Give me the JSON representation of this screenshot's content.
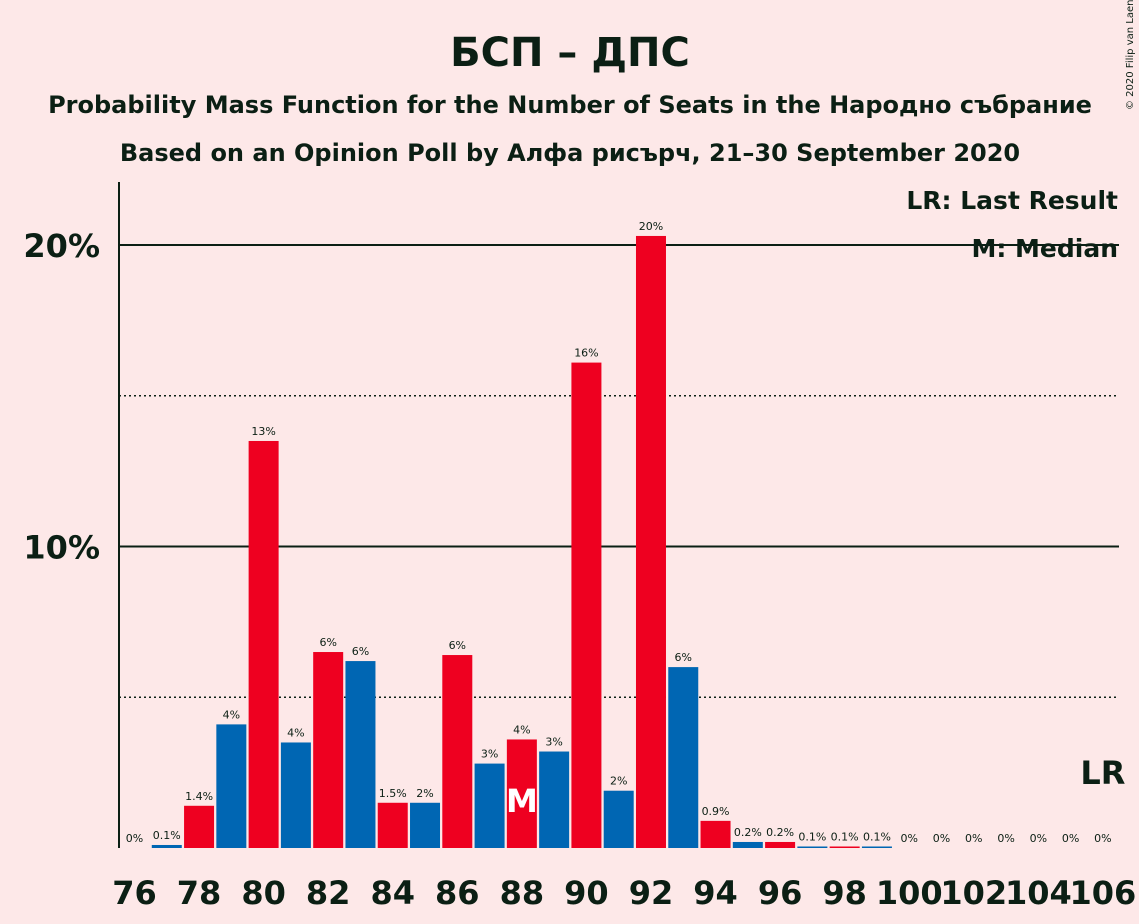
{
  "title": "БСП – ДПС",
  "subtitle1": "Probability Mass Function for the Number of Seats in the Народно събрание",
  "subtitle2": "Based on an Opinion Poll by Алфа рисърч, 21–30 September 2020",
  "copyright": "© 2020 Filip van Laenen",
  "legend": {
    "last_result": "LR: Last Result",
    "median": "M: Median"
  },
  "markers": {
    "lr_label": "LR",
    "median_label": "M",
    "median_seat": 88,
    "last_result_seat": 106
  },
  "colors": {
    "red": "#ee0020",
    "blue": "#0066b3",
    "background": "#fde8e8",
    "text": "#0b1f14"
  },
  "chart_data": {
    "type": "bar",
    "x": [
      76,
      77,
      78,
      79,
      80,
      81,
      82,
      83,
      84,
      85,
      86,
      87,
      88,
      89,
      90,
      91,
      92,
      93,
      94,
      95,
      96,
      97,
      98,
      99,
      100,
      101,
      102,
      103,
      104,
      105,
      106
    ],
    "values": [
      0,
      0.1,
      1.4,
      4.1,
      13.5,
      3.5,
      6.5,
      6.2,
      1.5,
      1.5,
      6.4,
      2.8,
      3.6,
      3.2,
      16.1,
      1.9,
      20.3,
      6.0,
      0.9,
      0.2,
      0.2,
      0.05,
      0.05,
      0.05,
      0,
      0,
      0,
      0,
      0,
      0,
      0
    ],
    "colors": [
      "red",
      "blue",
      "red",
      "blue",
      "red",
      "blue",
      "red",
      "blue",
      "red",
      "blue",
      "red",
      "blue",
      "red",
      "blue",
      "red",
      "blue",
      "red",
      "blue",
      "red",
      "blue",
      "red",
      "blue",
      "red",
      "blue",
      "red",
      "blue",
      "red",
      "blue",
      "red",
      "blue",
      "red"
    ],
    "labels": [
      "0%",
      "0.1%",
      "1.4%",
      "4%",
      "13%",
      "4%",
      "6%",
      "6%",
      "1.5%",
      "2%",
      "6%",
      "3%",
      "4%",
      "3%",
      "16%",
      "2%",
      "20%",
      "6%",
      "0.9%",
      "0.2%",
      "0.2%",
      "0.1%",
      "0.1%",
      "0.1%",
      "0%",
      "0%",
      "0%",
      "0%",
      "0%",
      "0%",
      "0%"
    ],
    "xticks": [
      76,
      78,
      80,
      82,
      84,
      86,
      88,
      90,
      92,
      94,
      96,
      98,
      100,
      102,
      104,
      106
    ],
    "yticks": [
      {
        "value": 10,
        "label": "10%"
      },
      {
        "value": 20,
        "label": "20%"
      }
    ],
    "dotted_lines": [
      5,
      15
    ],
    "ylim": [
      0,
      22
    ]
  }
}
